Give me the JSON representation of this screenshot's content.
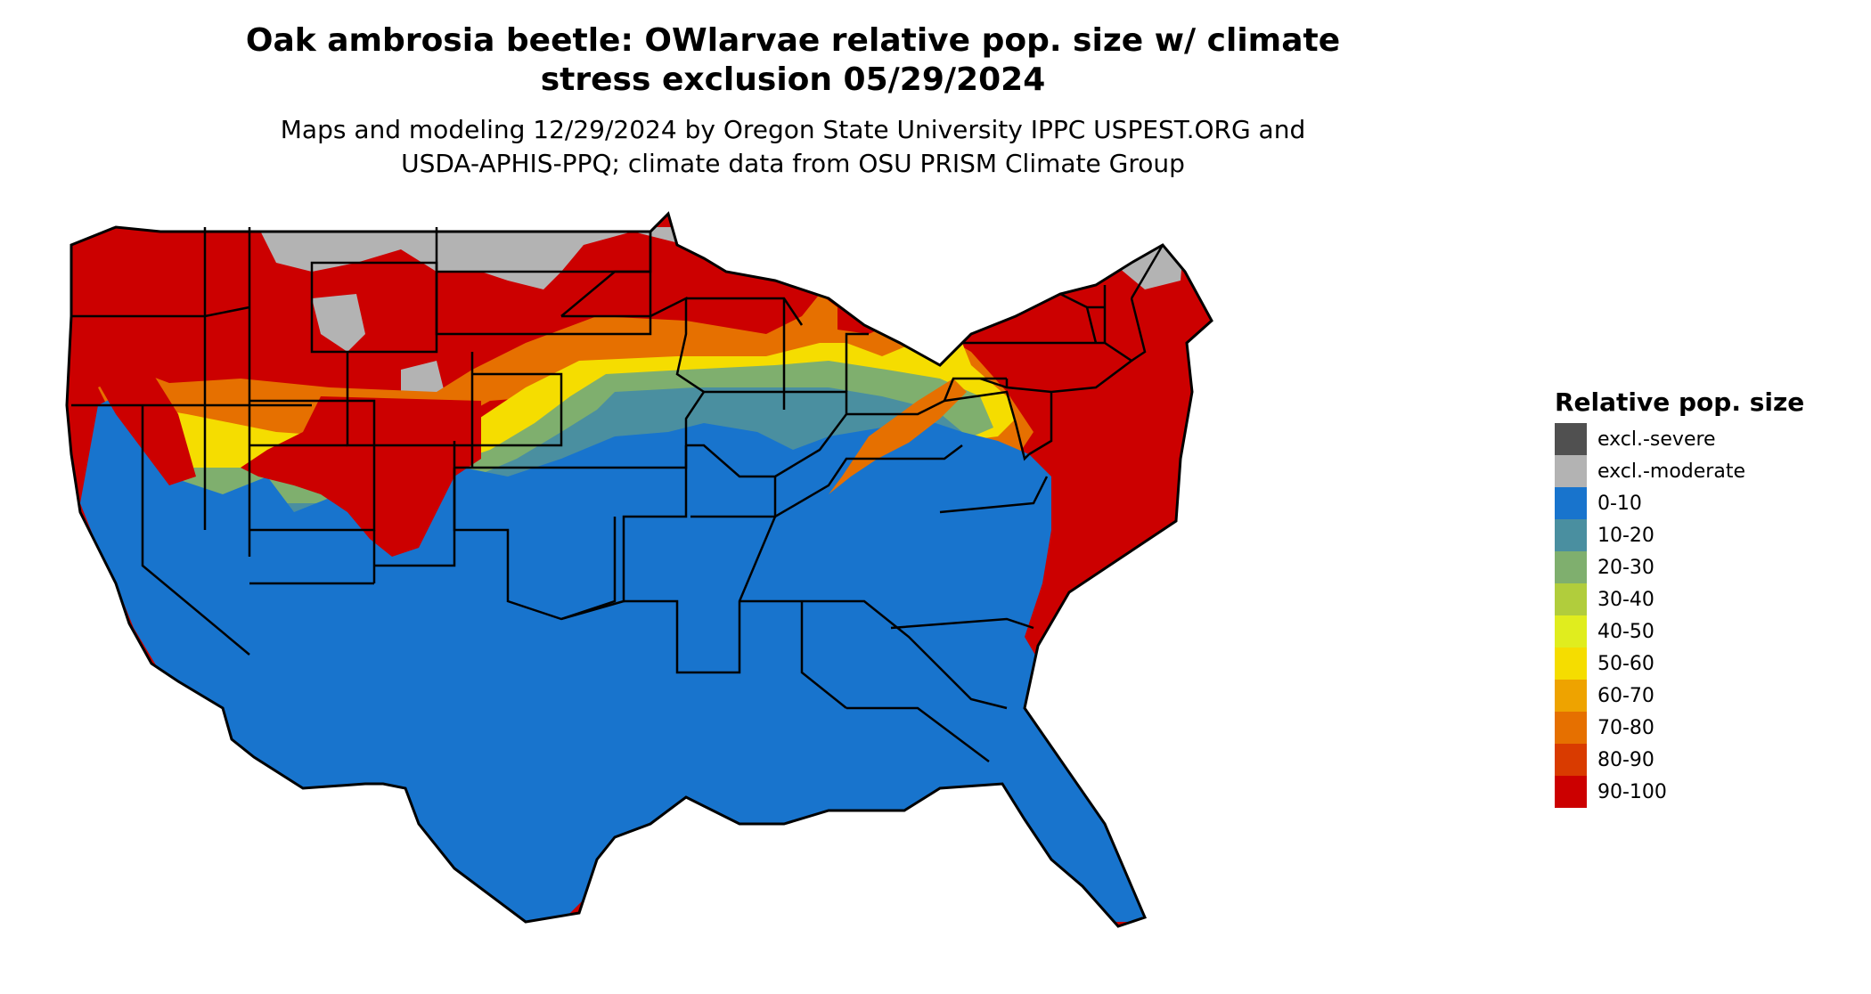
{
  "title": {
    "line1": "Oak ambrosia beetle: OWlarvae relative pop. size w/ climate",
    "line2": "stress exclusion 05/29/2024"
  },
  "subtitle": {
    "line1": "Maps and modeling 12/29/2024 by Oregon State University IPPC USPEST.ORG and",
    "line2": "USDA-APHIS-PPQ; climate data from OSU PRISM Climate Group"
  },
  "legend": {
    "title": "Relative pop. size",
    "items": [
      {
        "label": "excl.-severe",
        "color": "#505050"
      },
      {
        "label": "excl.-moderate",
        "color": "#b3b3b3"
      },
      {
        "label": "0-10",
        "color": "#1874cd"
      },
      {
        "label": "10-20",
        "color": "#4a8fa0"
      },
      {
        "label": "20-30",
        "color": "#7faf6e"
      },
      {
        "label": "30-40",
        "color": "#b1cd3c"
      },
      {
        "label": "40-50",
        "color": "#e0ed1e"
      },
      {
        "label": "50-60",
        "color": "#f5dd00"
      },
      {
        "label": "60-70",
        "color": "#eea300"
      },
      {
        "label": "70-80",
        "color": "#e67000"
      },
      {
        "label": "80-90",
        "color": "#d93b00"
      },
      {
        "label": "90-100",
        "color": "#cc0000"
      }
    ]
  }
}
